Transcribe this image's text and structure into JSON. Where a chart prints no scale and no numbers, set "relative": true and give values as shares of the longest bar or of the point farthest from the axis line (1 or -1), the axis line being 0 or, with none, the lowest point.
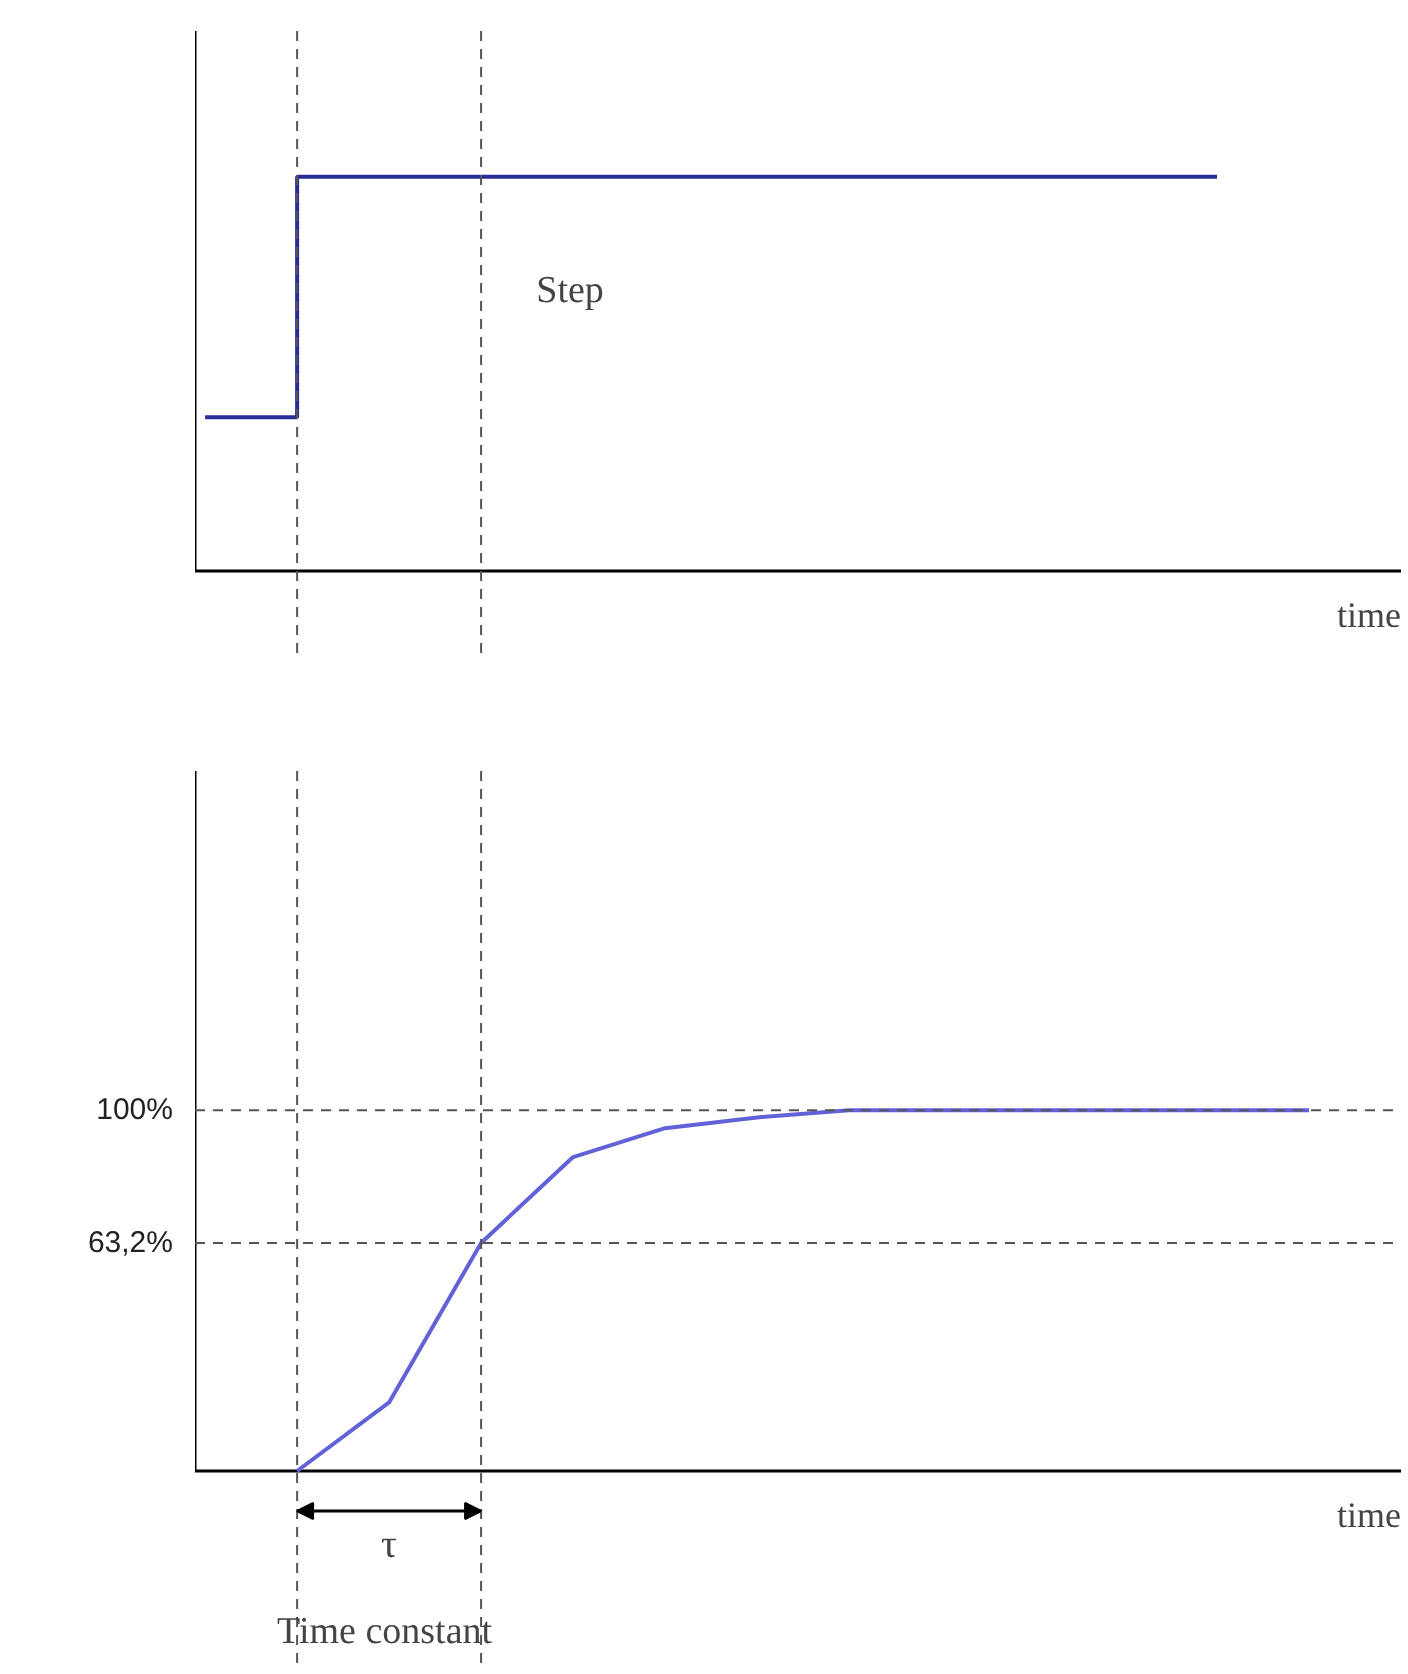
{
  "chart_data": [
    {
      "type": "step",
      "relative": true,
      "xlabel": "time",
      "tick_labels": false,
      "grid": false,
      "categories": [
        null,
        null,
        null,
        null,
        null,
        null,
        null,
        null,
        null,
        null,
        null,
        null,
        null
      ],
      "series": [
        {
          "color": "#2b2b9a",
          "values": [
            0.39,
            1,
            1,
            1,
            1,
            1,
            1,
            1,
            1,
            1,
            1,
            1,
            null
          ]
        }
      ],
      "annotations": [
        "Step"
      ]
    },
    {
      "type": "line",
      "xlabel": "time",
      "ylim": [
        0,
        194
      ],
      "yticks": [
        {
          "value": 63.2,
          "label": "63,2%"
        },
        {
          "value": 100,
          "label": "100%"
        }
      ],
      "tick_labels": "y",
      "grid": false,
      "categories": [
        null,
        null,
        null,
        null,
        null,
        null,
        null,
        null,
        null,
        null,
        null,
        null,
        null
      ],
      "series": [
        {
          "color": "#6262d8",
          "values": [
            null,
            0,
            19,
            63.2,
            87,
            95,
            98,
            100,
            100,
            100,
            100,
            100,
            100
          ]
        }
      ],
      "ref_lines": [
        {
          "axis": "y",
          "value": 100,
          "label": null,
          "line_style": "dashed",
          "color": "#555555"
        },
        {
          "axis": "y",
          "value": 63.2,
          "label": null,
          "line_style": "dashed",
          "color": "#555555"
        }
      ],
      "annotations": [
        "τ",
        "Time constant"
      ]
    }
  ]
}
